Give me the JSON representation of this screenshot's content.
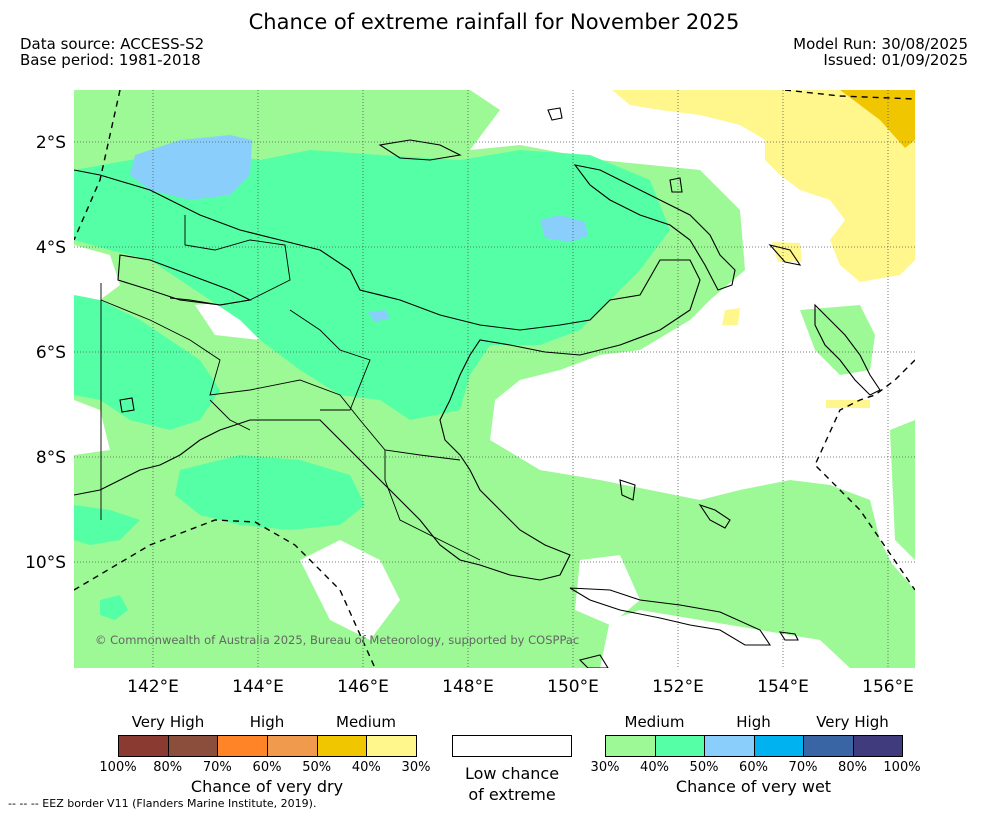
{
  "header": {
    "title": "Chance of extreme rainfall for November 2025",
    "data_source": "Data source: ACCESS-S2",
    "base_period": "Base period: 1981-2018",
    "model_run": "Model Run: 30/08/2025",
    "issued": "Issued: 01/09/2025"
  },
  "map": {
    "lat_ticks": [
      "2°S",
      "4°S",
      "6°S",
      "8°S",
      "10°S"
    ],
    "lon_ticks": [
      "142°E",
      "144°E",
      "146°E",
      "148°E",
      "150°E",
      "152°E",
      "154°E",
      "156°E"
    ],
    "copyright": "© Commonwealth of Australia 2025, Bureau of Meteorology, supported by COSPPac"
  },
  "legend": {
    "dry": {
      "categories": [
        "Very High",
        "High",
        "Medium"
      ],
      "colors": [
        "#8B3A32",
        "#8B4E3C",
        "#FF8427",
        "#EF9A4C",
        "#EFC600",
        "#FFF78C"
      ],
      "tick_labels": [
        "100%",
        "80%",
        "70%",
        "60%",
        "50%",
        "40%",
        "30%"
      ],
      "caption": "Chance of very dry"
    },
    "low": {
      "line1": "Low chance",
      "line2": "of extreme"
    },
    "wet": {
      "categories": [
        "Medium",
        "High",
        "Very High"
      ],
      "colors": [
        "#9CF996",
        "#55FFA5",
        "#8ACEFC",
        "#00B2F0",
        "#3A65A5",
        "#3F3B7D"
      ],
      "tick_labels": [
        "30%",
        "40%",
        "50%",
        "60%",
        "70%",
        "80%",
        "100%"
      ],
      "caption": "Chance of very wet"
    },
    "eez_note": "-- -- -- EEZ border V11 (Flanders Marine Institute, 2019)."
  }
}
